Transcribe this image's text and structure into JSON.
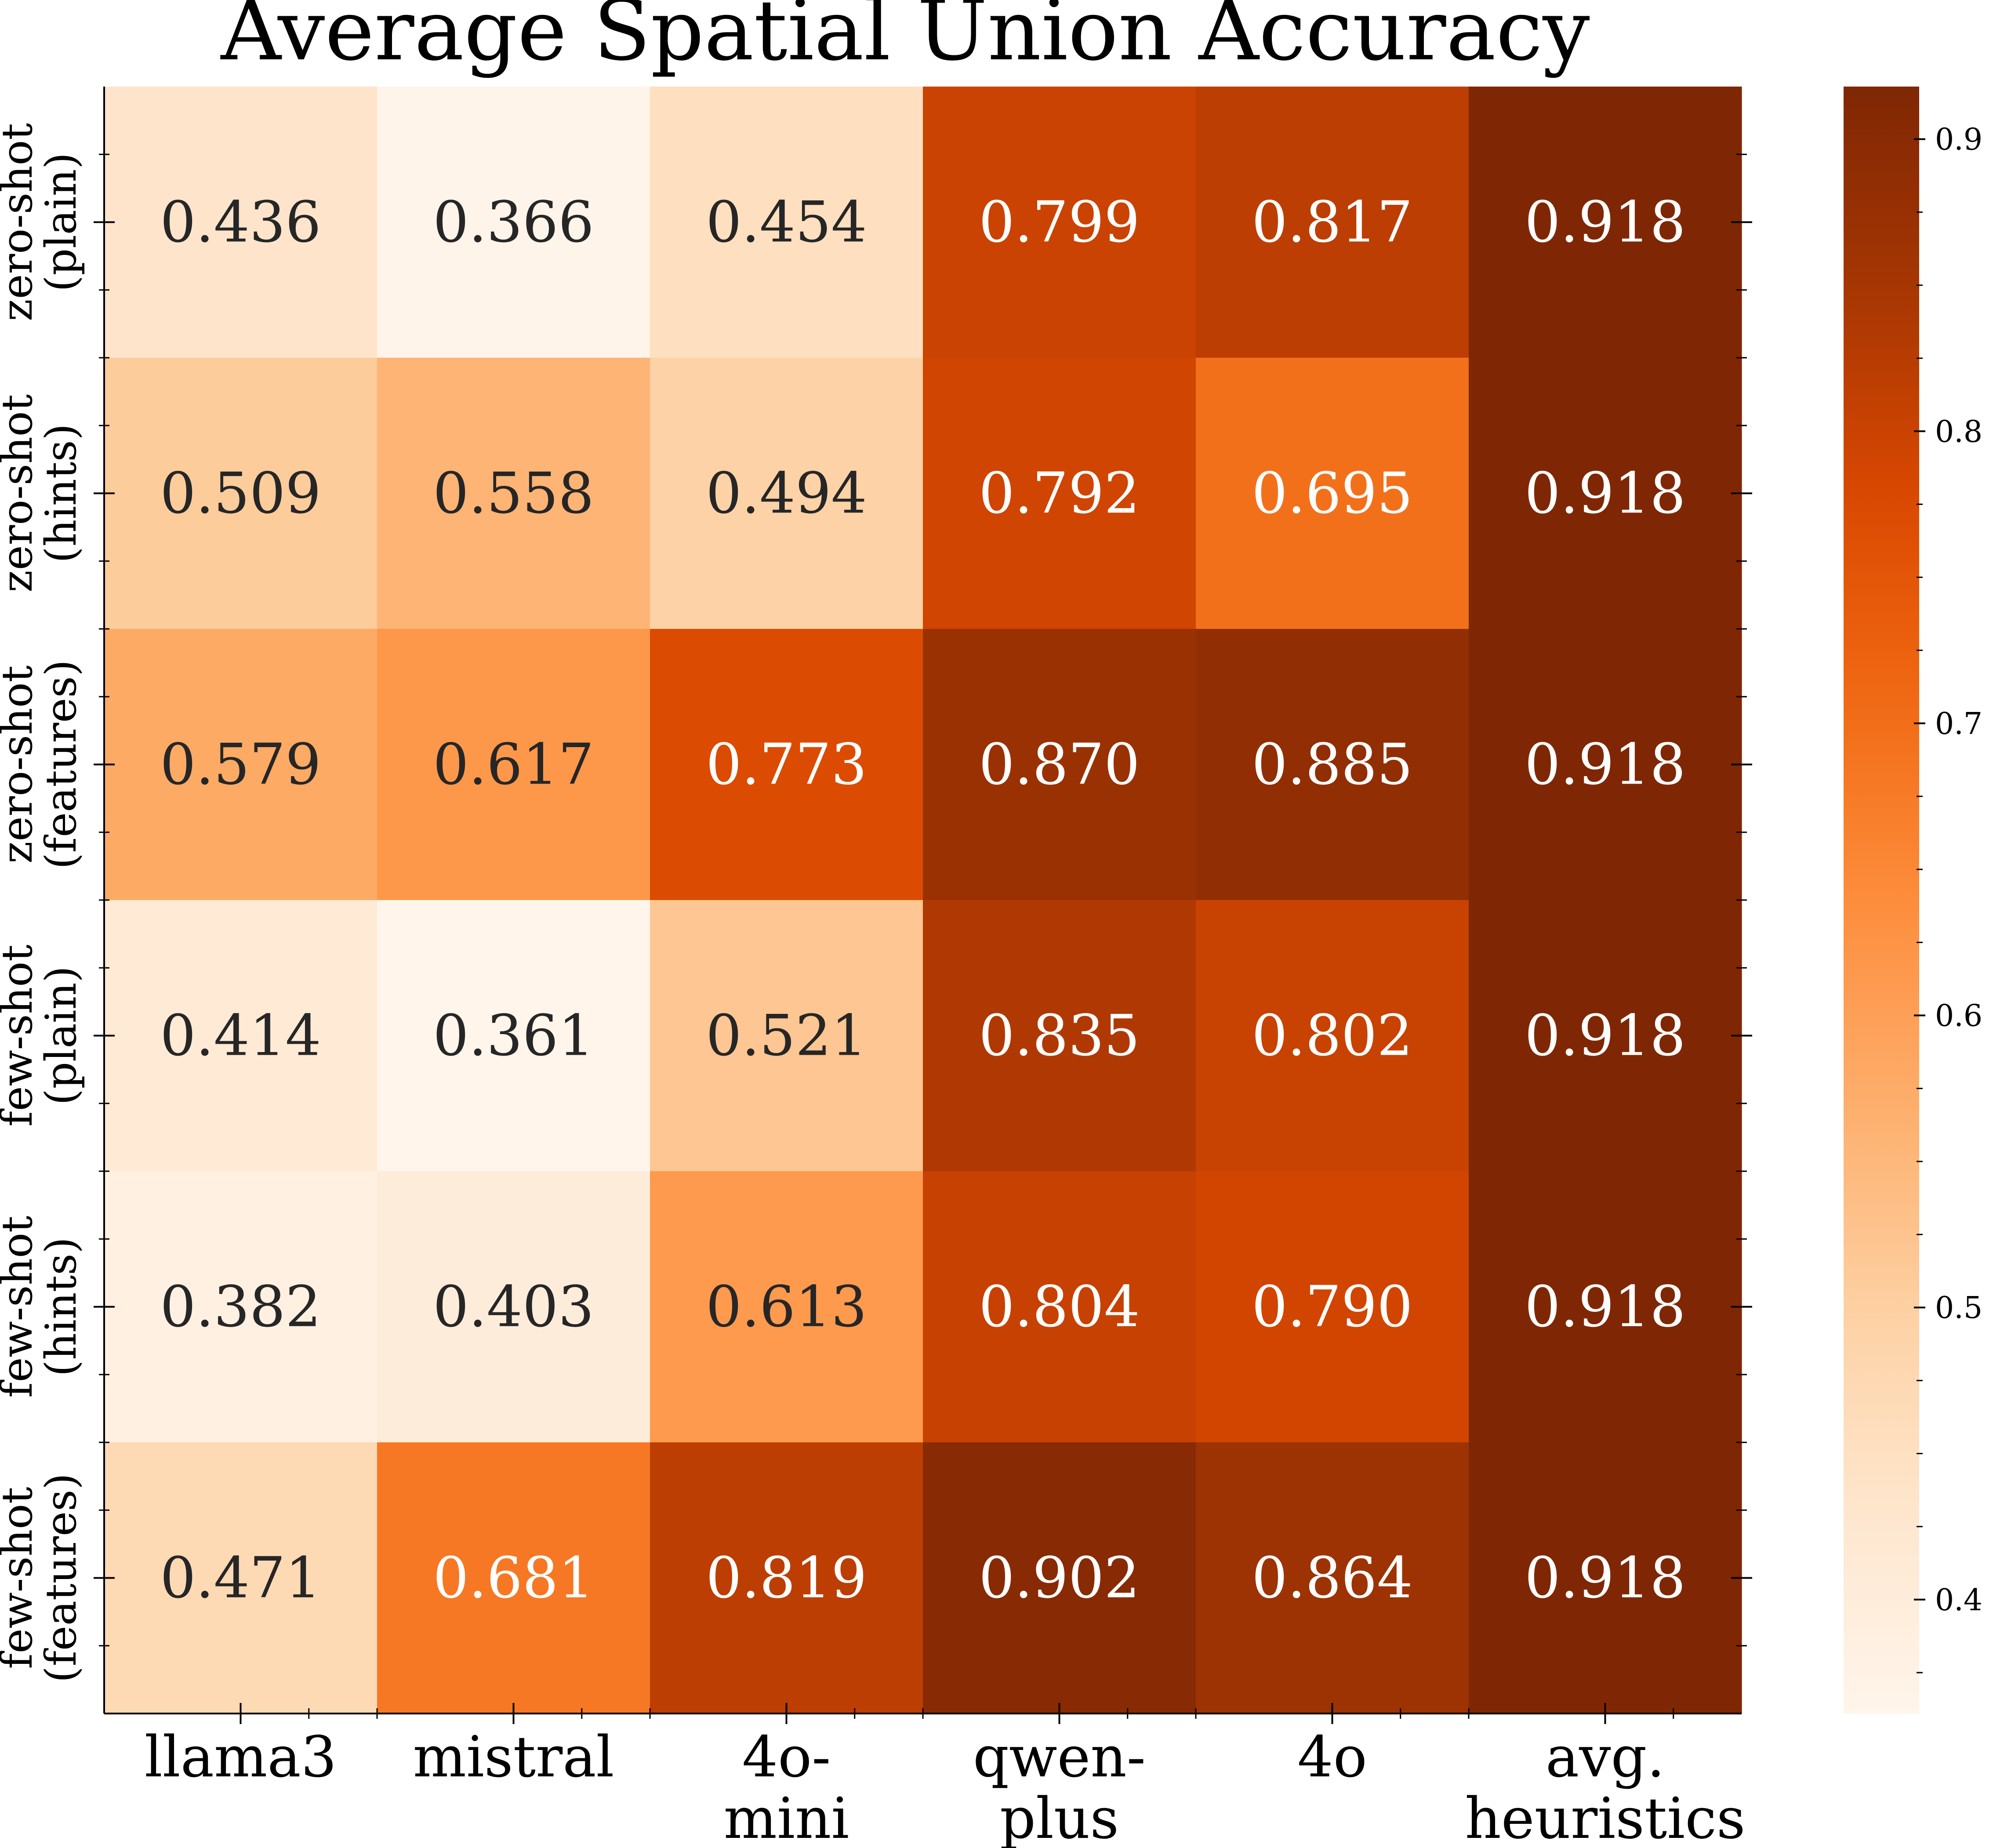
{
  "chart_data": {
    "type": "heatmap",
    "title": "Average Spatial Union Accuracy",
    "columns": [
      [
        "llama3"
      ],
      [
        "mistral"
      ],
      [
        "4o-",
        "mini"
      ],
      [
        "qwen-",
        "plus"
      ],
      [
        "4o"
      ],
      [
        "avg.",
        "heuristics"
      ]
    ],
    "rows": [
      [
        "zero-shot",
        "(plain)"
      ],
      [
        "zero-shot",
        "(hints)"
      ],
      [
        "zero-shot",
        "(features)"
      ],
      [
        "few-shot",
        "(plain)"
      ],
      [
        "few-shot",
        "(hints)"
      ],
      [
        "few-shot",
        "(features)"
      ]
    ],
    "values": [
      [
        0.436,
        0.366,
        0.454,
        0.799,
        0.817,
        0.918
      ],
      [
        0.509,
        0.558,
        0.494,
        0.792,
        0.695,
        0.918
      ],
      [
        0.579,
        0.617,
        0.773,
        0.87,
        0.885,
        0.918
      ],
      [
        0.414,
        0.361,
        0.521,
        0.835,
        0.802,
        0.918
      ],
      [
        0.382,
        0.403,
        0.613,
        0.804,
        0.79,
        0.918
      ],
      [
        0.471,
        0.681,
        0.819,
        0.902,
        0.864,
        0.918
      ]
    ],
    "value_format": "3 decimals",
    "colorscale": "Oranges",
    "vmin": 0.361,
    "vmax": 0.918,
    "colorbar_ticks": [
      {
        "value": 0.4,
        "label": "0.4"
      },
      {
        "value": 0.5,
        "label": "0.5"
      },
      {
        "value": 0.6,
        "label": "0.6"
      },
      {
        "value": 0.7,
        "label": "0.7"
      },
      {
        "value": 0.8,
        "label": "0.8"
      },
      {
        "value": 0.9,
        "label": "0.9"
      }
    ],
    "text_colors": {
      "light": "#ffffff",
      "dark": "#262626"
    }
  }
}
